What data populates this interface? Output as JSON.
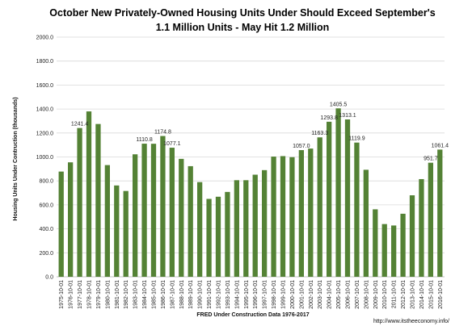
{
  "chart_data": {
    "type": "bar",
    "title_line1": "October New Privately-Owned Housing Units Under Should Exceed September's",
    "title_line2": "1.1 Million Units - May Hit 1.2  Million",
    "xlabel": "FRED Under Construction Data 1976-2017",
    "ylabel": "Housing Units Under Contruction (thousands)",
    "source": "http://www.itstheeconomy.info/",
    "ylim": [
      0,
      2000
    ],
    "yticks": [
      "0.0",
      "200.0",
      "400.0",
      "600.0",
      "800.0",
      "1000.0",
      "1200.0",
      "1400.0",
      "1600.0",
      "1800.0",
      "2000.0"
    ],
    "grid": true,
    "bar_color": "#548235",
    "categories": [
      "1975-10-01",
      "1976-10-01",
      "1977-10-01",
      "1978-10-01",
      "1979-10-01",
      "1980-10-01",
      "1981-10-01",
      "1982-10-01",
      "1983-10-01",
      "1984-10-01",
      "1985-10-01",
      "1986-10-01",
      "1987-10-01",
      "1988-10-01",
      "1989-10-01",
      "1990-10-01",
      "1991-10-01",
      "1992-10-01",
      "1993-10-01",
      "1994-10-01",
      "1995-10-01",
      "1996-10-01",
      "1997-10-01",
      "1998-10-01",
      "1999-10-01",
      "2000-10-01",
      "2001-10-01",
      "2002-10-01",
      "2003-10-01",
      "2004-10-01",
      "2005-10-01",
      "2006-10-01",
      "2007-10-01",
      "2008-10-01",
      "2009-10-01",
      "2010-10-01",
      "2011-10-01",
      "2012-10-01",
      "2013-10-01",
      "2014-10-01",
      "2015-10-01",
      "2016-10-01"
    ],
    "values": [
      878,
      955,
      1241.4,
      1380,
      1275,
      932,
      762,
      716,
      1022,
      1110.8,
      1110,
      1174.8,
      1077.1,
      984,
      923,
      790,
      650,
      668,
      708,
      806,
      806,
      852,
      890,
      1003,
      1007,
      998,
      1057.0,
      1070,
      1163.3,
      1293.8,
      1405.5,
      1313.1,
      1119.9,
      893,
      563,
      440,
      428,
      526,
      680,
      815,
      951.7,
      1061.4
    ],
    "data_labels": [
      {
        "index": 2,
        "text": "1241.4"
      },
      {
        "index": 9,
        "text": "1110.8"
      },
      {
        "index": 11,
        "text": "1174.8"
      },
      {
        "index": 12,
        "text": "1077.1"
      },
      {
        "index": 26,
        "text": "1057.0"
      },
      {
        "index": 28,
        "text": "1163.3"
      },
      {
        "index": 29,
        "text": "1293.8"
      },
      {
        "index": 30,
        "text": "1405.5"
      },
      {
        "index": 31,
        "text": "1313.1"
      },
      {
        "index": 32,
        "text": "1119.9"
      },
      {
        "index": 40,
        "text": "951.7"
      },
      {
        "index": 41,
        "text": "1061.4"
      }
    ]
  }
}
